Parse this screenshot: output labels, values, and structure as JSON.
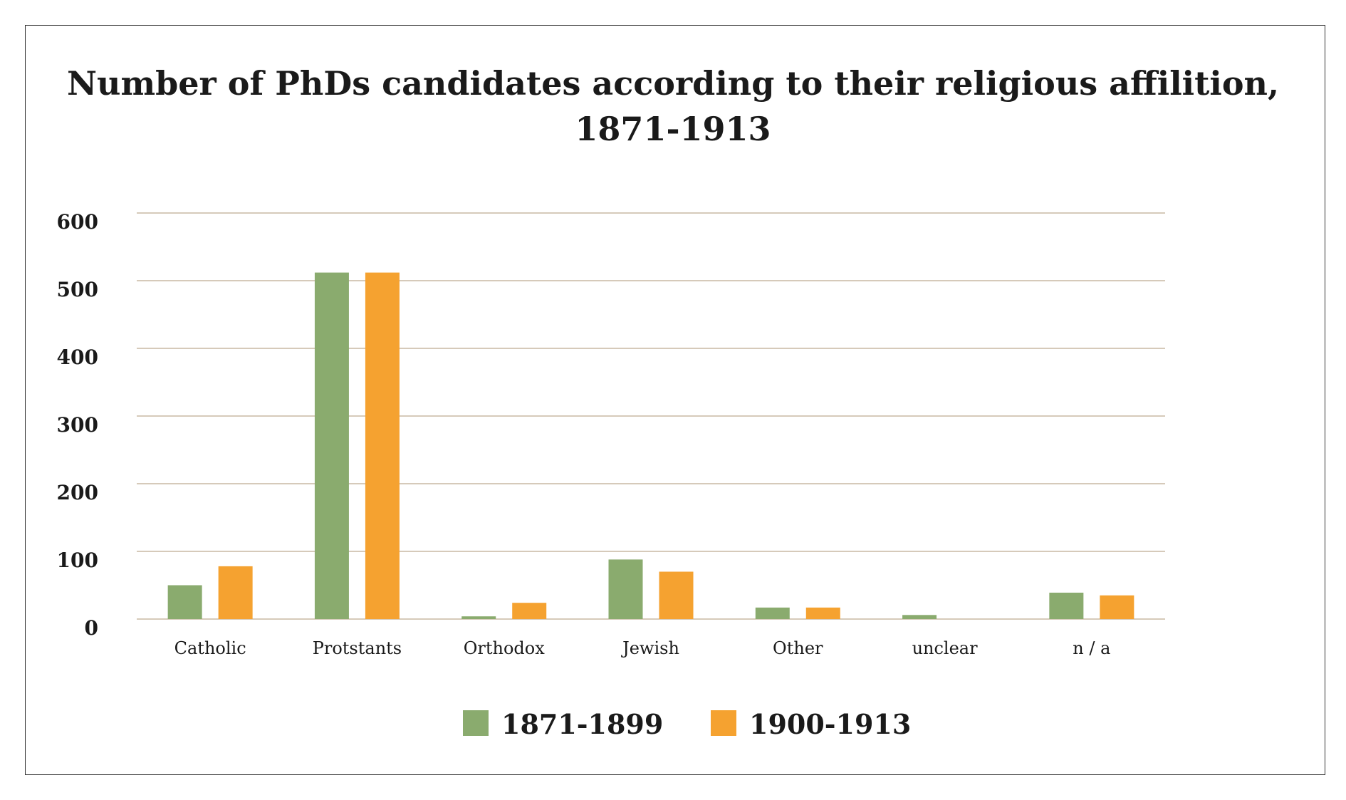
{
  "chart_data": {
    "type": "bar",
    "title": "Number of PhDs candidates according to their religious affilition, 1871-1913",
    "title_lines": [
      "Number of PhDs candidates according to their religious affilition,",
      "1871-1913"
    ],
    "categories": [
      "Catholic",
      "Protstants",
      "Orthodox",
      "Jewish",
      "Other",
      "unclear",
      "n / a"
    ],
    "series": [
      {
        "name": "1871-1899",
        "color": "#8aab6e",
        "values": [
          50,
          512,
          4,
          88,
          17,
          6,
          39
        ]
      },
      {
        "name": "1900-1913",
        "color": "#f5a230",
        "values": [
          78,
          512,
          24,
          70,
          17,
          0,
          35
        ]
      }
    ],
    "xlabel": "",
    "ylabel": "",
    "ylim": [
      0,
      600
    ],
    "yticks": [
      "0",
      "100",
      "200",
      "300",
      "400",
      "500",
      "600"
    ],
    "grid": true,
    "legend_position": "bottom"
  }
}
